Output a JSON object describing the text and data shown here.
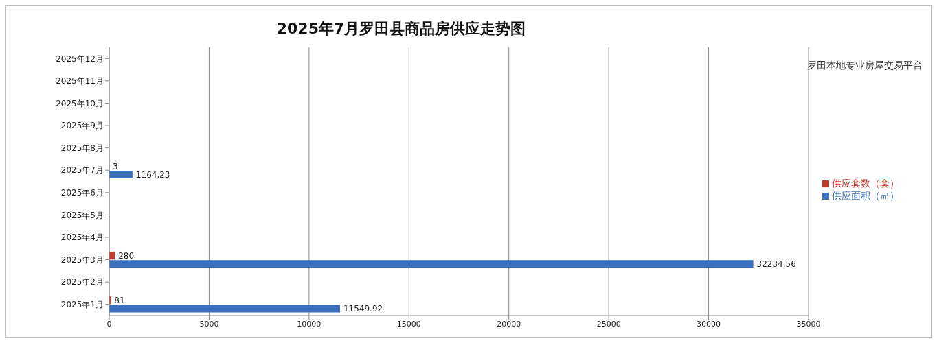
{
  "chart_data": {
    "type": "bar",
    "orientation": "horizontal",
    "title": "2025年7月罗田县商品房供应走势图",
    "categories": [
      "2025年12月",
      "2025年11月",
      "2025年10月",
      "2025年9月",
      "2025年8月",
      "2025年7月",
      "2025年6月",
      "2025年5月",
      "2025年4月",
      "2025年3月",
      "2025年2月",
      "2025年1月"
    ],
    "series": [
      {
        "name": "供应套数（套）",
        "color": "#c0392b",
        "values": [
          null,
          null,
          null,
          null,
          null,
          3,
          null,
          null,
          null,
          280,
          null,
          81
        ]
      },
      {
        "name": "供应面积（㎡）",
        "color": "#3b6fbd",
        "values": [
          null,
          null,
          null,
          null,
          null,
          1164.23,
          null,
          null,
          null,
          32234.56,
          null,
          11549.92
        ]
      }
    ],
    "xlim": [
      0,
      35000
    ],
    "xticks": [
      0,
      5000,
      10000,
      15000,
      20000,
      25000,
      30000,
      35000
    ],
    "grid": "x",
    "legend": "right",
    "data_labels": true,
    "annotations": [
      "罗田本地专业房屋交易平台"
    ]
  }
}
